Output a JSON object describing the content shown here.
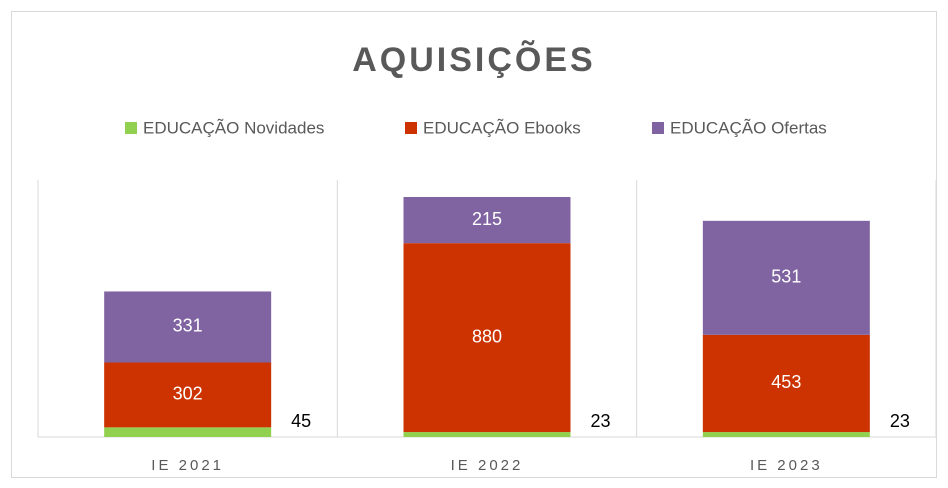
{
  "chart_data": {
    "type": "stacked_bar",
    "title": "AQUISIÇÕES",
    "categories": [
      "IE 2021",
      "IE 2022",
      "IE 2023"
    ],
    "series": [
      {
        "name": "EDUCAÇÃO Novidades",
        "color": "#92d050",
        "values": [
          45,
          23,
          23
        ]
      },
      {
        "name": "EDUCAÇÃO Ebooks",
        "color": "#cc3300",
        "values": [
          302,
          880,
          453
        ]
      },
      {
        "name": "EDUCAÇÃO Ofertas",
        "color": "#8064a2",
        "values": [
          331,
          215,
          531
        ]
      }
    ],
    "legend": "top"
  }
}
